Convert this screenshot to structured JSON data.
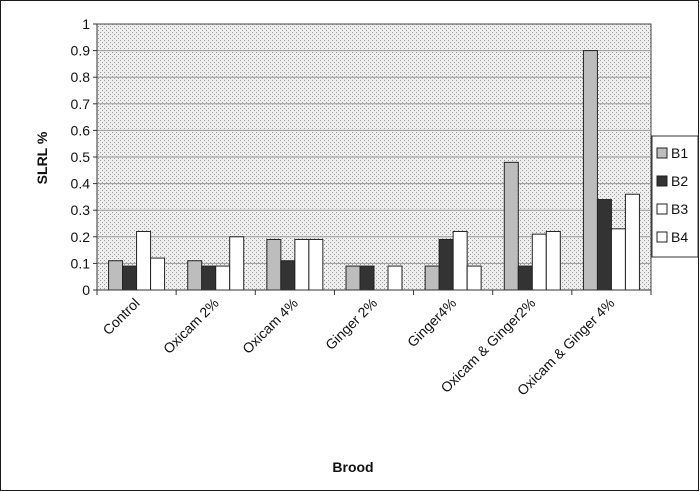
{
  "chart_data": {
    "type": "bar",
    "title": "",
    "xlabel": "Brood",
    "ylabel": "SLRL %",
    "ylim": [
      0,
      1
    ],
    "yticks": [
      "0",
      "0.1",
      "0.2",
      "0.3",
      "0.4",
      "0.5",
      "0.6",
      "0.7",
      "0.8",
      "0.9",
      "1"
    ],
    "grid": true,
    "legend_position": "right",
    "categories": [
      "Control",
      "Oxicam 2%",
      "Oxicam 4%",
      "Ginger 2%",
      "Ginger4%",
      "Oxicam & Ginger2%",
      "Oxicam & Ginger 4%"
    ],
    "series": [
      {
        "name": "B1",
        "color": "#bdbdbd",
        "values": [
          0.11,
          0.11,
          0.19,
          0.09,
          0.09,
          0.48,
          0.9
        ]
      },
      {
        "name": "B2",
        "color": "#333333",
        "values": [
          0.09,
          0.09,
          0.11,
          0.09,
          0.19,
          0.09,
          0.34
        ]
      },
      {
        "name": "B3",
        "color": "#ffffff",
        "values": [
          0.22,
          0.09,
          0.19,
          0.0,
          0.22,
          0.21,
          0.23
        ]
      },
      {
        "name": "B4",
        "color": "#ffffff",
        "values": [
          0.12,
          0.2,
          0.19,
          0.09,
          0.09,
          0.22,
          0.36
        ]
      }
    ]
  }
}
